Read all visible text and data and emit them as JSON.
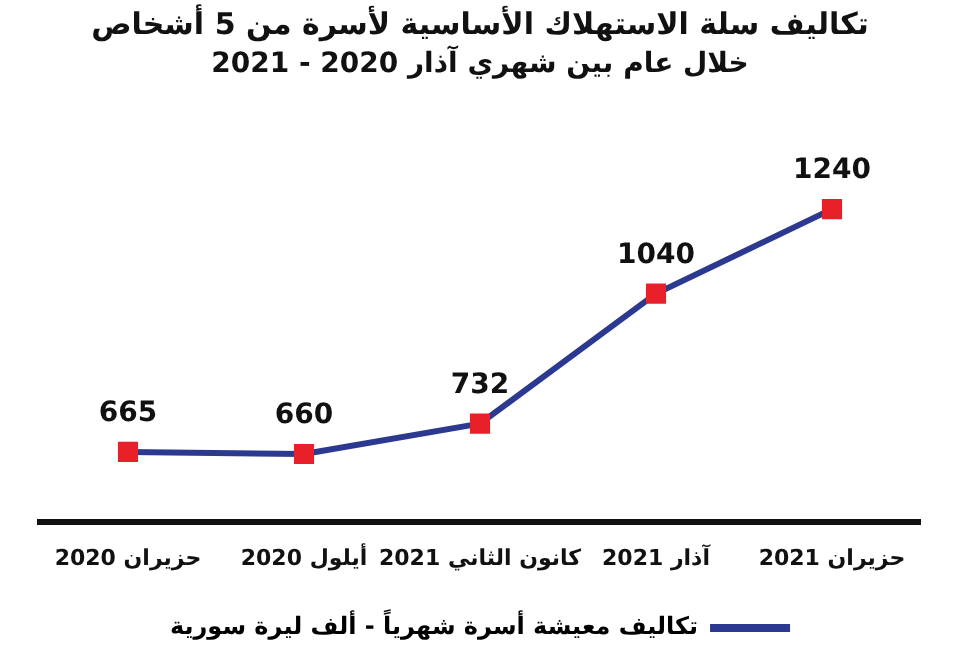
{
  "chart_data": {
    "type": "line",
    "title": "تكاليف سلة الاستهلاك الأساسية لأسرة من 5 أشخاص",
    "subtitle": "خلال عام بين شهري آذار 2020 - 2021",
    "categories": [
      "حزيران 2020",
      "أيلول 2020",
      "كانون الثاني 2021",
      "آذار 2021",
      "حزيران 2021"
    ],
    "series": [
      {
        "name": "تكاليف معيشة أسرة شهرياً - ألف ليرة سورية",
        "color": "#2b3990",
        "colors": [
          "#e8202a",
          "#e8202a",
          "#e8202a",
          "#e8202a",
          "#e8202a"
        ],
        "values": [
          665,
          660,
          732,
          1040,
          1240
        ]
      }
    ],
    "data_labels": true,
    "marker": "square",
    "line_style": "solid",
    "legend": "bottom",
    "grid": false,
    "tick_labels": "x"
  }
}
